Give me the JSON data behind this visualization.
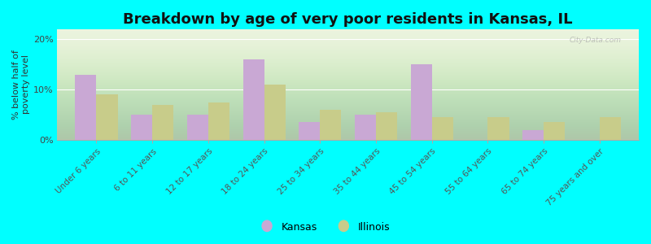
{
  "categories": [
    "Under 6 years",
    "6 to 11 years",
    "12 to 17 years",
    "18 to 24 years",
    "25 to 34 years",
    "35 to 44 years",
    "45 to 54 years",
    "55 to 64 years",
    "65 to 74 years",
    "75 years and over"
  ],
  "kansas": [
    13.0,
    5.0,
    5.0,
    16.0,
    3.5,
    5.0,
    15.0,
    0.0,
    2.0,
    0.0
  ],
  "illinois": [
    9.0,
    7.0,
    7.5,
    11.0,
    6.0,
    5.5,
    4.5,
    4.5,
    3.5,
    4.5
  ],
  "kansas_color": "#c9a8d4",
  "illinois_color": "#c8cc8a",
  "title": "Breakdown by age of very poor residents in Kansas, IL",
  "ylabel": "% below half of\npoverty level",
  "ylim": [
    0,
    22
  ],
  "yticks": [
    0,
    10,
    20
  ],
  "ytick_labels": [
    "0%",
    "10%",
    "20%"
  ],
  "background_color": "#00ffff",
  "bar_width": 0.38,
  "title_fontsize": 13,
  "axis_fontsize": 8,
  "watermark": "City-Data.com"
}
